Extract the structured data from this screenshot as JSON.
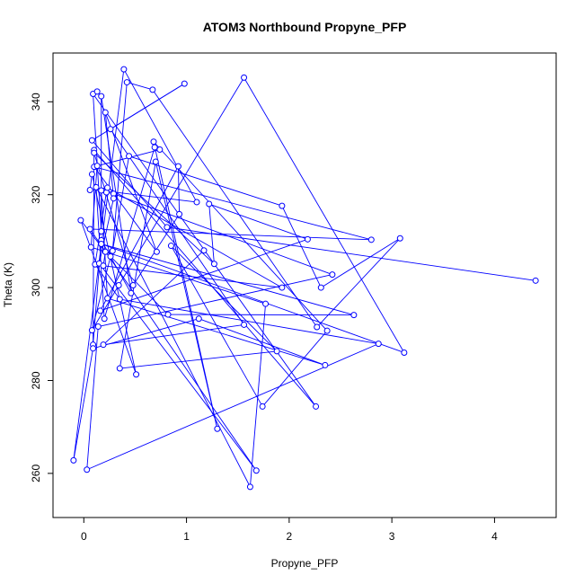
{
  "chart_data": {
    "type": "line",
    "title": "ATOM3 Northbound Propyne_PFP",
    "xlabel": "Propyne_PFP",
    "ylabel": "Theta (K)",
    "xlim": [
      -0.3,
      4.6
    ],
    "ylim": [
      250.5,
      350.5
    ],
    "x_ticks": [
      0,
      1,
      2,
      3,
      4
    ],
    "y_ticks": [
      260,
      280,
      300,
      320,
      340
    ],
    "grid": false,
    "legend": "none",
    "series_color": "#0000FF",
    "points": [
      {
        "x": -0.1,
        "y": 262.8
      },
      {
        "x": -0.03,
        "y": 314.5
      },
      {
        "x": 0.03,
        "y": 260.8
      },
      {
        "x": 0.06,
        "y": 321.0
      },
      {
        "x": 0.06,
        "y": 312.6
      },
      {
        "x": 0.07,
        "y": 308.7
      },
      {
        "x": 0.08,
        "y": 331.7
      },
      {
        "x": 0.08,
        "y": 324.4
      },
      {
        "x": 0.08,
        "y": 290.8
      },
      {
        "x": 0.09,
        "y": 341.7
      },
      {
        "x": 0.09,
        "y": 287.7
      },
      {
        "x": 0.09,
        "y": 286.9
      },
      {
        "x": 0.1,
        "y": 329.6
      },
      {
        "x": 0.1,
        "y": 329.0
      },
      {
        "x": 0.1,
        "y": 326.0
      },
      {
        "x": 0.11,
        "y": 305.0
      },
      {
        "x": 0.12,
        "y": 321.6
      },
      {
        "x": 0.13,
        "y": 342.2
      },
      {
        "x": 0.13,
        "y": 326.2
      },
      {
        "x": 0.14,
        "y": 291.6
      },
      {
        "x": 0.15,
        "y": 305.2
      },
      {
        "x": 0.16,
        "y": 295.0
      },
      {
        "x": 0.17,
        "y": 341.2
      },
      {
        "x": 0.17,
        "y": 320.9
      },
      {
        "x": 0.17,
        "y": 312.1
      },
      {
        "x": 0.17,
        "y": 310.2
      },
      {
        "x": 0.17,
        "y": 309.4
      },
      {
        "x": 0.19,
        "y": 304.7
      },
      {
        "x": 0.19,
        "y": 287.7
      },
      {
        "x": 0.2,
        "y": 293.3
      },
      {
        "x": 0.21,
        "y": 337.7
      },
      {
        "x": 0.21,
        "y": 307.7
      },
      {
        "x": 0.22,
        "y": 320.5
      },
      {
        "x": 0.23,
        "y": 321.5
      },
      {
        "x": 0.23,
        "y": 297.7
      },
      {
        "x": 0.26,
        "y": 334.1
      },
      {
        "x": 0.26,
        "y": 306.7
      },
      {
        "x": 0.28,
        "y": 307.9
      },
      {
        "x": 0.29,
        "y": 320.2
      },
      {
        "x": 0.29,
        "y": 319.2
      },
      {
        "x": 0.34,
        "y": 300.5
      },
      {
        "x": 0.35,
        "y": 297.5
      },
      {
        "x": 0.35,
        "y": 282.6
      },
      {
        "x": 0.39,
        "y": 347.0
      },
      {
        "x": 0.42,
        "y": 344.2
      },
      {
        "x": 0.44,
        "y": 328.3
      },
      {
        "x": 0.46,
        "y": 298.8
      },
      {
        "x": 0.48,
        "y": 300.5
      },
      {
        "x": 0.51,
        "y": 281.3
      },
      {
        "x": 0.67,
        "y": 342.6
      },
      {
        "x": 0.68,
        "y": 331.4
      },
      {
        "x": 0.69,
        "y": 330.2
      },
      {
        "x": 0.7,
        "y": 327.1
      },
      {
        "x": 0.71,
        "y": 307.7
      },
      {
        "x": 0.74,
        "y": 329.7
      },
      {
        "x": 0.81,
        "y": 313.0
      },
      {
        "x": 0.82,
        "y": 294.2
      },
      {
        "x": 0.85,
        "y": 309.0
      },
      {
        "x": 0.92,
        "y": 326.1
      },
      {
        "x": 0.93,
        "y": 315.8
      },
      {
        "x": 0.98,
        "y": 343.9
      },
      {
        "x": 1.1,
        "y": 318.4
      },
      {
        "x": 1.12,
        "y": 293.3
      },
      {
        "x": 1.17,
        "y": 308.0
      },
      {
        "x": 1.22,
        "y": 318.0
      },
      {
        "x": 1.27,
        "y": 305.1
      },
      {
        "x": 1.3,
        "y": 269.6
      },
      {
        "x": 1.56,
        "y": 345.2
      },
      {
        "x": 1.56,
        "y": 292.0
      },
      {
        "x": 1.62,
        "y": 257.1
      },
      {
        "x": 1.68,
        "y": 260.6
      },
      {
        "x": 1.74,
        "y": 274.4
      },
      {
        "x": 1.77,
        "y": 296.5
      },
      {
        "x": 1.88,
        "y": 286.3
      },
      {
        "x": 1.93,
        "y": 317.6
      },
      {
        "x": 1.93,
        "y": 300.0
      },
      {
        "x": 2.18,
        "y": 310.4
      },
      {
        "x": 2.26,
        "y": 274.4
      },
      {
        "x": 2.27,
        "y": 291.5
      },
      {
        "x": 2.31,
        "y": 300.0
      },
      {
        "x": 2.35,
        "y": 283.3
      },
      {
        "x": 2.37,
        "y": 290.7
      },
      {
        "x": 2.42,
        "y": 302.8
      },
      {
        "x": 2.63,
        "y": 294.1
      },
      {
        "x": 2.8,
        "y": 310.3
      },
      {
        "x": 2.87,
        "y": 287.9
      },
      {
        "x": 3.08,
        "y": 310.6
      },
      {
        "x": 3.12,
        "y": 286.0
      },
      {
        "x": 4.4,
        "y": 301.5
      }
    ]
  }
}
